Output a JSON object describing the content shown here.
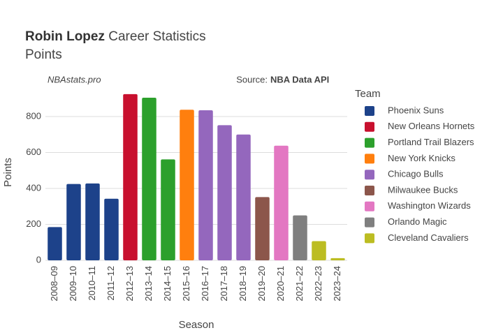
{
  "chart_data": {
    "type": "bar",
    "title_name": "Robin Lopez",
    "title": "Career Statistics",
    "subtitle": "Points",
    "watermark": "NBAstats.pro",
    "source_label": "Source:",
    "source": "NBA Data API",
    "x_label": "Season",
    "y_label": "Points",
    "legend_title": "Team",
    "categories": [
      "2008–09",
      "2009–10",
      "2010–11",
      "2011–12",
      "2012–13",
      "2013–14",
      "2014–15",
      "2015–16",
      "2016–17",
      "2017–18",
      "2018–19",
      "2019–20",
      "2020–21",
      "2021–22",
      "2022–23",
      "2023–24"
    ],
    "series": [
      {
        "name": "Phoenix Suns",
        "color": "#1d428a",
        "values": [
          185,
          425,
          428,
          343,
          null,
          null,
          null,
          null,
          null,
          null,
          null,
          null,
          null,
          null,
          null,
          null
        ]
      },
      {
        "name": "New Orleans Hornets",
        "color": "#c8102e",
        "values": [
          null,
          null,
          null,
          null,
          925,
          null,
          null,
          null,
          null,
          null,
          null,
          null,
          null,
          null,
          null,
          null
        ]
      },
      {
        "name": "Portland Trail Blazers",
        "color": "#2ca02c",
        "values": [
          null,
          null,
          null,
          null,
          null,
          905,
          562,
          null,
          null,
          null,
          null,
          null,
          null,
          null,
          null,
          null
        ]
      },
      {
        "name": "New York Knicks",
        "color": "#ff7f0e",
        "values": [
          null,
          null,
          null,
          null,
          null,
          null,
          null,
          838,
          null,
          null,
          null,
          null,
          null,
          null,
          null,
          null
        ]
      },
      {
        "name": "Chicago Bulls",
        "color": "#9467bd",
        "values": [
          null,
          null,
          null,
          null,
          null,
          null,
          null,
          null,
          835,
          752,
          700,
          null,
          null,
          null,
          null,
          null
        ]
      },
      {
        "name": "Milwaukee Bucks",
        "color": "#8c564b",
        "values": [
          null,
          null,
          null,
          null,
          null,
          null,
          null,
          null,
          null,
          null,
          null,
          352,
          null,
          null,
          null,
          null
        ]
      },
      {
        "name": "Washington Wizards",
        "color": "#e377c2",
        "values": [
          null,
          null,
          null,
          null,
          null,
          null,
          null,
          null,
          null,
          null,
          null,
          null,
          638,
          null,
          null,
          null
        ]
      },
      {
        "name": "Orlando Magic",
        "color": "#7f7f7f",
        "values": [
          null,
          null,
          null,
          null,
          null,
          null,
          null,
          null,
          null,
          null,
          null,
          null,
          null,
          250,
          null,
          null
        ]
      },
      {
        "name": "Cleveland Cavaliers",
        "color": "#bcbd22",
        "values": [
          null,
          null,
          null,
          null,
          null,
          null,
          null,
          null,
          null,
          null,
          null,
          null,
          null,
          null,
          107,
          12
        ]
      }
    ],
    "ylim": [
      0,
      975
    ],
    "yticks": [
      0,
      200,
      400,
      600,
      800
    ],
    "grid": true
  }
}
